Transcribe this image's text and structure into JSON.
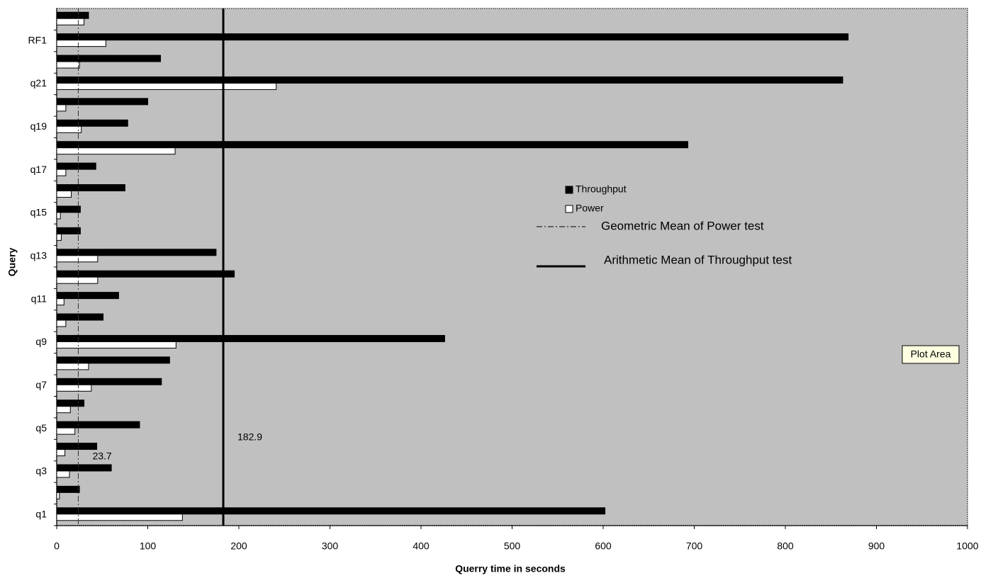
{
  "chart_data": {
    "type": "bar",
    "orientation": "horizontal",
    "x_label": "Querry time in seconds",
    "y_label": "Query",
    "categories": [
      "q1",
      null,
      "q3",
      null,
      "q5",
      null,
      "q7",
      null,
      "q9",
      null,
      "q11",
      null,
      "q13",
      null,
      "q15",
      null,
      "q17",
      null,
      "q19",
      null,
      "q21",
      null,
      "RF1",
      null
    ],
    "series": [
      {
        "name": "Throughput",
        "color": "#000000",
        "values": [
          602,
          25,
          60,
          44,
          91,
          30,
          115,
          124,
          426,
          51,
          68,
          195,
          175,
          26,
          26,
          75,
          43,
          693,
          78,
          100,
          863,
          114,
          869,
          35
        ]
      },
      {
        "name": "Power",
        "color": "#ffffff",
        "values": [
          138,
          3,
          14,
          9,
          20,
          15,
          38,
          35,
          131,
          10,
          8,
          45,
          45,
          5,
          4,
          16,
          10,
          130,
          27,
          10,
          241,
          25,
          54,
          30
        ]
      }
    ],
    "reference_lines": [
      {
        "name": "Geometric Mean of Power test",
        "value": 23.7,
        "style": "dashdot"
      },
      {
        "name": "Arithmetic Mean of Throughput test",
        "value": 182.9,
        "style": "solid"
      }
    ],
    "xlim": [
      0,
      1000
    ],
    "xticks": [
      0,
      100,
      200,
      300,
      400,
      500,
      600,
      700,
      800,
      900,
      1000
    ],
    "plot_background": "#c0c0c0",
    "tooltip": "Plot Area"
  }
}
